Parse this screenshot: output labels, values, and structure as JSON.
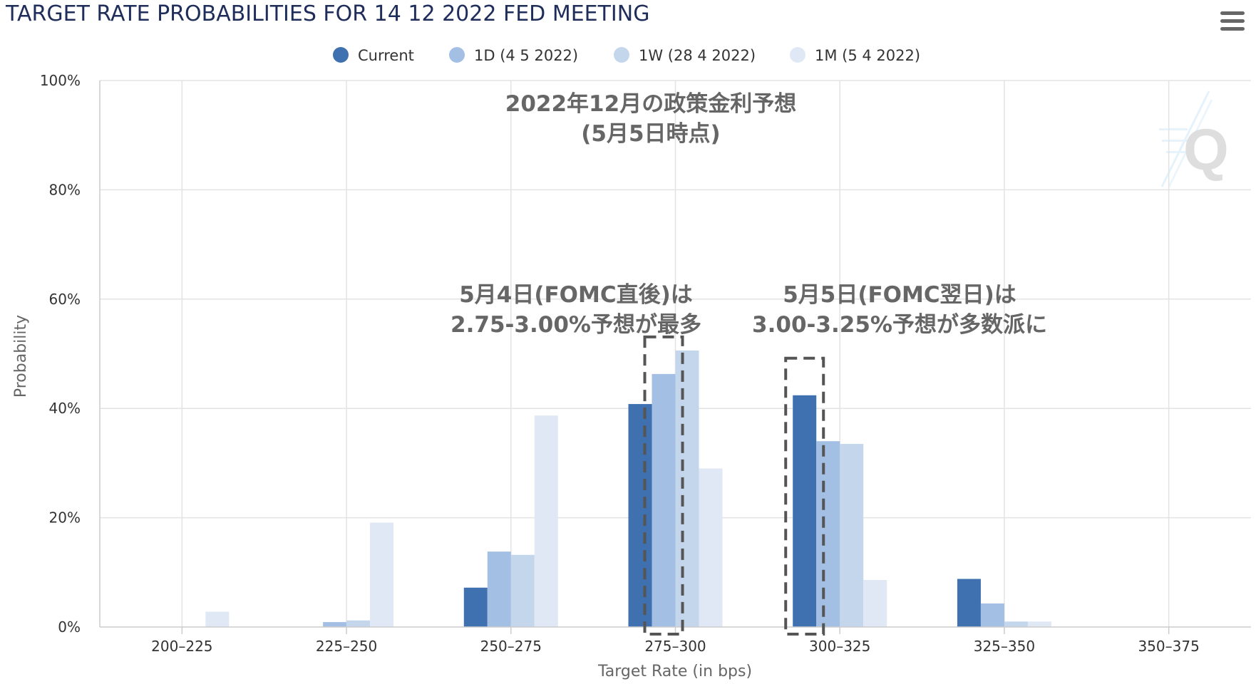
{
  "chart_data": {
    "type": "bar",
    "title": "TARGET RATE PROBABILITIES FOR 14 12 2022 FED MEETING",
    "xlabel": "Target Rate (in bps)",
    "ylabel": "Probability",
    "categories": [
      "200–225",
      "225–250",
      "250–275",
      "275–300",
      "300–325",
      "325–350",
      "350–375"
    ],
    "ylim": [
      0,
      100
    ],
    "y_ticks": [
      "0%",
      "20%",
      "40%",
      "60%",
      "80%",
      "100%"
    ],
    "y_tick_values": [
      0,
      20,
      40,
      60,
      80,
      100
    ],
    "grid": true,
    "legend_position": "top-center",
    "series": [
      {
        "name": "Current",
        "color": "#3f70b0",
        "values": [
          0,
          0,
          7.2,
          40.8,
          42.4,
          8.8,
          0
        ]
      },
      {
        "name": "1D (4 5 2022)",
        "color": "#a3bfe3",
        "values": [
          0,
          0.9,
          13.8,
          46.3,
          34.0,
          4.3,
          0
        ]
      },
      {
        "name": "1W (28 4 2022)",
        "color": "#c3d6ec",
        "values": [
          0,
          1.2,
          13.2,
          50.6,
          33.5,
          1.0,
          0
        ]
      },
      {
        "name": "1M (5 4 2022)",
        "color": "#dfe8f4",
        "values": [
          2.8,
          19.1,
          38.7,
          29.0,
          8.6,
          1.0,
          0
        ]
      }
    ],
    "annotations": {
      "top_line1": "2022年12月の政策金利予想",
      "top_line2": "(5月5日時点)",
      "left_line1": "5月4日(FOMC直後)は",
      "left_line2": "2.75-3.00%予想が最多",
      "right_line1": "5月5日(FOMC翌日)は",
      "right_line2": "3.00-3.25%予想が多数派に"
    },
    "highlight_boxes": [
      {
        "category": "275–300",
        "series": "1D (4 5 2022)"
      },
      {
        "category": "300–325",
        "series": "Current"
      }
    ],
    "colors": {
      "grid": "#e3e3e3",
      "axis": "#cccccc",
      "highlight_border": "#555555"
    }
  },
  "menu": {
    "icon": "hamburger-menu-icon"
  },
  "watermark": {
    "icon": "q-logo-icon"
  }
}
